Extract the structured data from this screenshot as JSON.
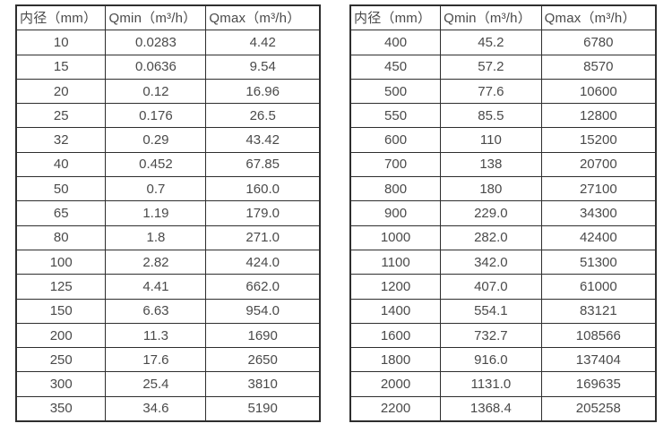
{
  "page": {
    "background_color": "#ffffff",
    "text_color": "#4a4a4a",
    "border_color": "#2e2e2e",
    "description_labels": {
      "diameter_header": "内径（mm）",
      "qmin_header": "Qmin（m³/h）",
      "qmax_header": "Qmax（m³/h）"
    }
  },
  "tables": [
    {
      "name": "flow-table-small-diameters",
      "headers": [
        "内径（mm）",
        "Qmin（m³/h）",
        "Qmax（m³/h）"
      ],
      "rows": [
        [
          "10",
          "0.0283",
          "4.42"
        ],
        [
          "15",
          "0.0636",
          "9.54"
        ],
        [
          "20",
          "0.12",
          "16.96"
        ],
        [
          "25",
          "0.176",
          "26.5"
        ],
        [
          "32",
          "0.29",
          "43.42"
        ],
        [
          "40",
          "0.452",
          "67.85"
        ],
        [
          "50",
          "0.7",
          "160.0"
        ],
        [
          "65",
          "1.19",
          "179.0"
        ],
        [
          "80",
          "1.8",
          "271.0"
        ],
        [
          "100",
          "2.82",
          "424.0"
        ],
        [
          "125",
          "4.41",
          "662.0"
        ],
        [
          "150",
          "6.63",
          "954.0"
        ],
        [
          "200",
          "11.3",
          "1690"
        ],
        [
          "250",
          "17.6",
          "2650"
        ],
        [
          "300",
          "25.4",
          "3810"
        ],
        [
          "350",
          "34.6",
          "5190"
        ]
      ]
    },
    {
      "name": "flow-table-large-diameters",
      "headers": [
        "内径（mm）",
        "Qmin（m³/h）",
        "Qmax（m³/h）"
      ],
      "rows": [
        [
          "400",
          "45.2",
          "6780"
        ],
        [
          "450",
          "57.2",
          "8570"
        ],
        [
          "500",
          "77.6",
          "10600"
        ],
        [
          "550",
          "85.5",
          "12800"
        ],
        [
          "600",
          "110",
          "15200"
        ],
        [
          "700",
          "138",
          "20700"
        ],
        [
          "800",
          "180",
          "27100"
        ],
        [
          "900",
          "229.0",
          "34300"
        ],
        [
          "1000",
          "282.0",
          "42400"
        ],
        [
          "1100",
          "342.0",
          "51300"
        ],
        [
          "1200",
          "407.0",
          "61000"
        ],
        [
          "1400",
          "554.1",
          "83121"
        ],
        [
          "1600",
          "732.7",
          "108566"
        ],
        [
          "1800",
          "916.0",
          "137404"
        ],
        [
          "2000",
          "1131.0",
          "169635"
        ],
        [
          "2200",
          "1368.4",
          "205258"
        ]
      ]
    }
  ]
}
